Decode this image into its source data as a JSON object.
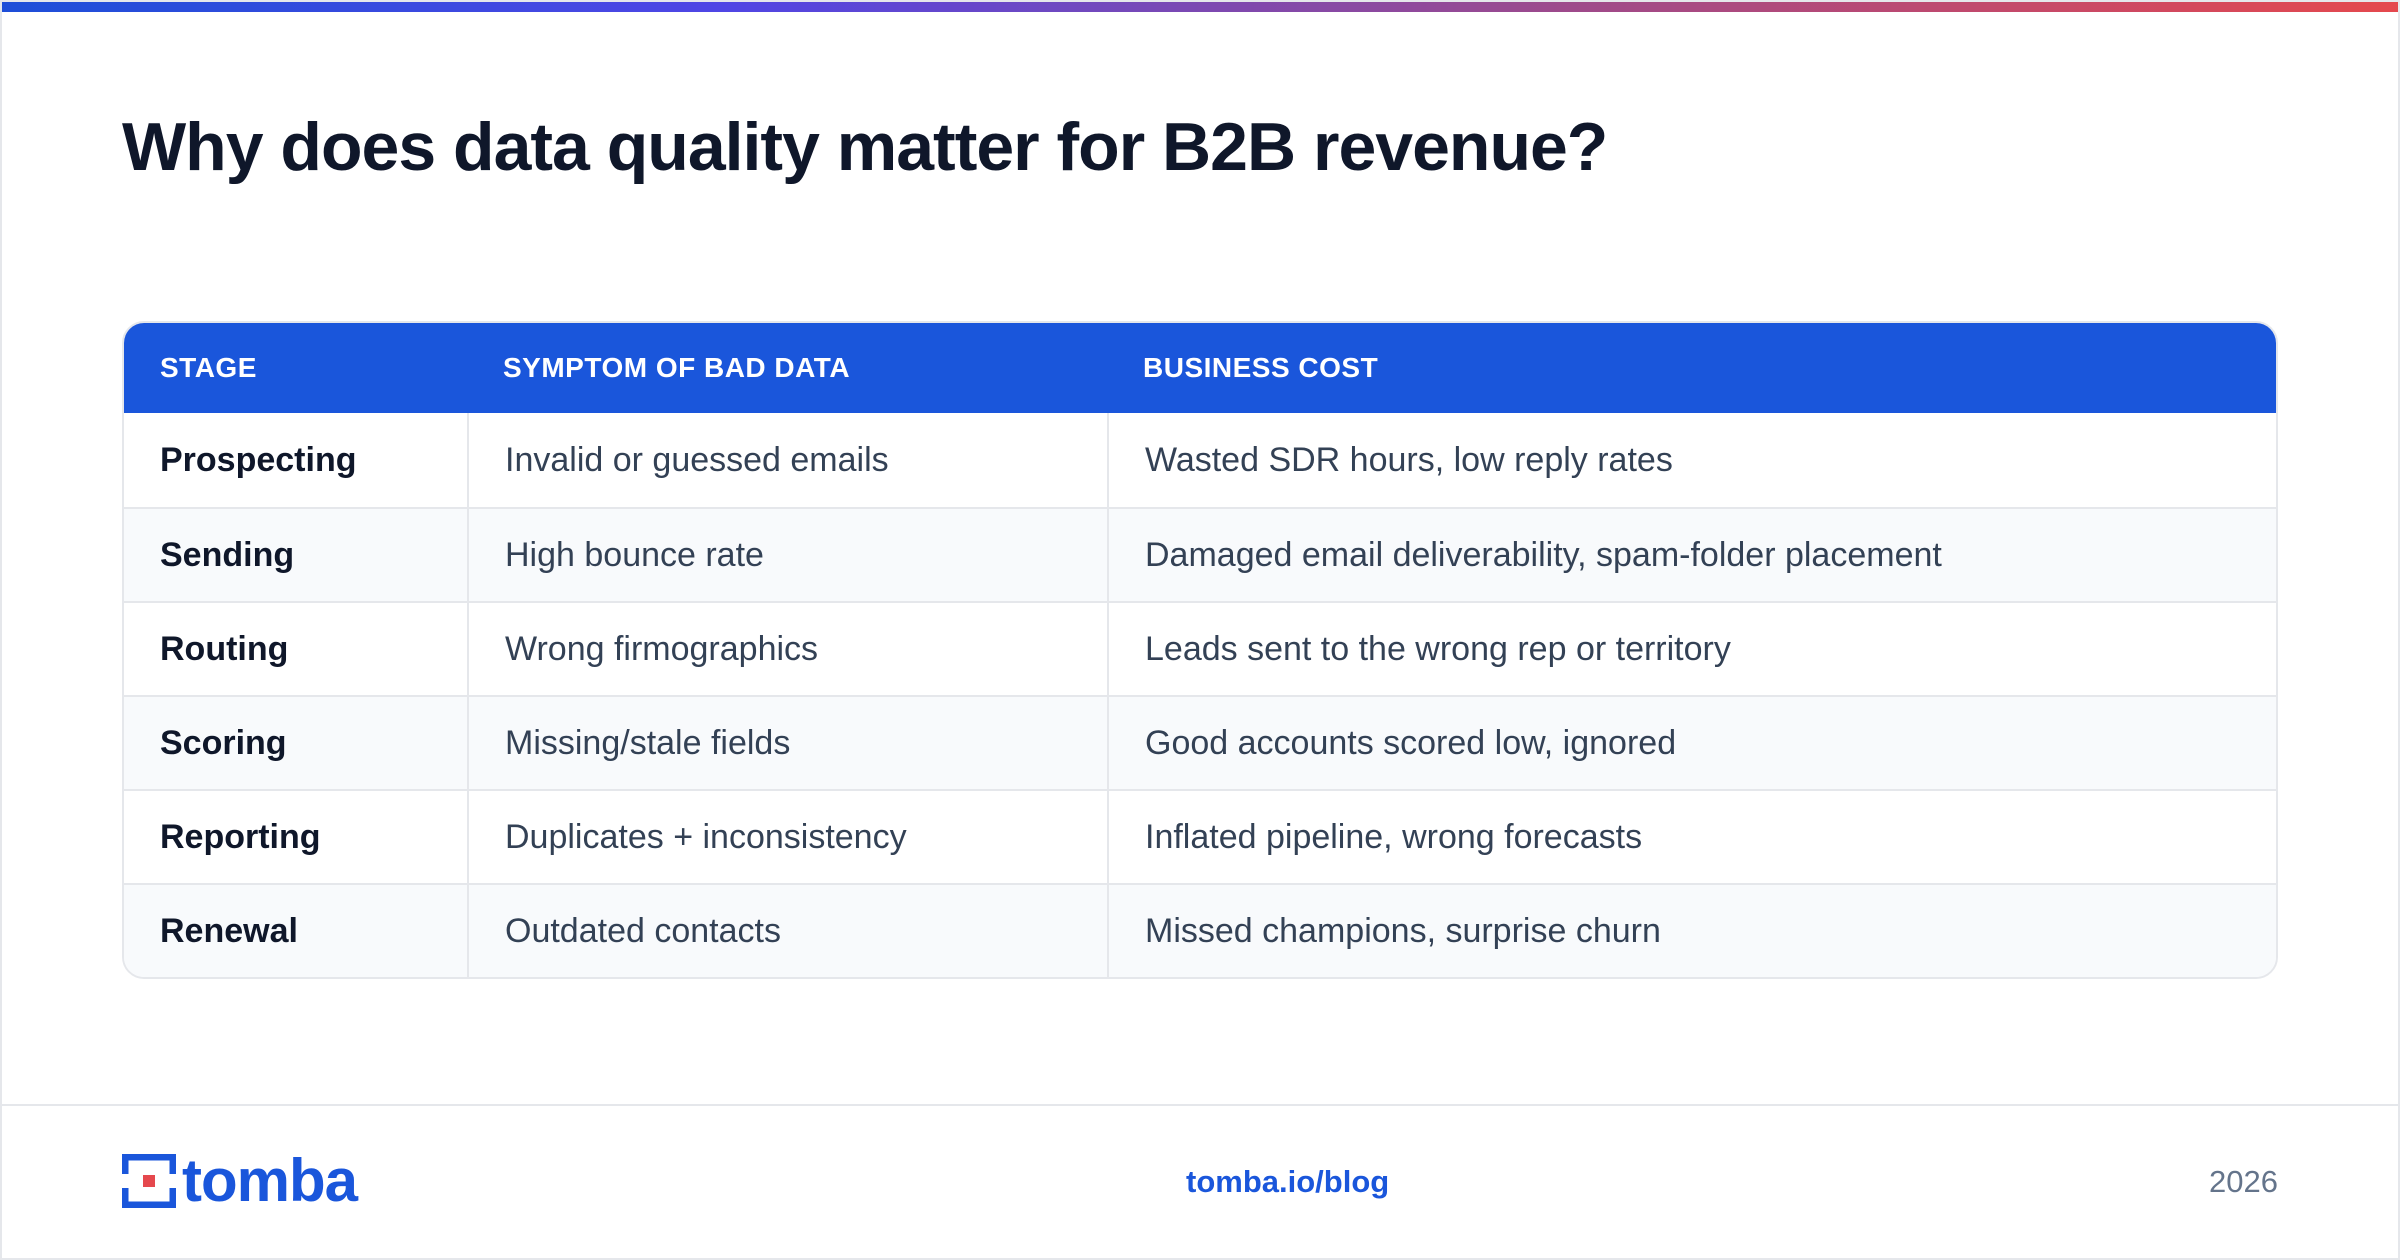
{
  "title": "Why does data quality matter for B2B revenue?",
  "table": {
    "headers": [
      "STAGE",
      "SYMPTOM OF BAD DATA",
      "BUSINESS COST"
    ],
    "rows": [
      [
        "Prospecting",
        "Invalid or guessed emails",
        "Wasted SDR hours, low reply rates"
      ],
      [
        "Sending",
        "High bounce rate",
        "Damaged email deliverability, spam-folder placement"
      ],
      [
        "Routing",
        "Wrong firmographics",
        "Leads sent to the wrong rep or territory"
      ],
      [
        "Scoring",
        "Missing/stale fields",
        "Good accounts scored low, ignored"
      ],
      [
        "Reporting",
        "Duplicates + inconsistency",
        "Inflated pipeline, wrong forecasts"
      ],
      [
        "Renewal",
        "Outdated contacts",
        "Missed champions, surprise churn"
      ]
    ]
  },
  "footer": {
    "logo_text": "tomba",
    "site": "tomba.io/blog",
    "year": "2026"
  },
  "colors": {
    "accent": "#1a56db",
    "logo_red": "#e5484d"
  },
  "icons": {
    "logo": "tomba-logo-icon"
  }
}
